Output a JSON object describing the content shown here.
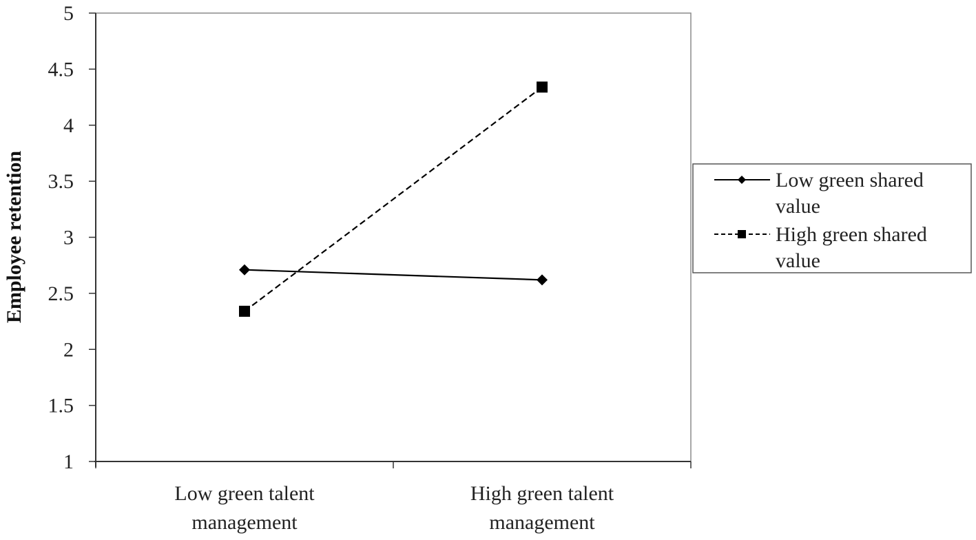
{
  "chart_data": {
    "type": "line",
    "title": "",
    "xlabel": "",
    "ylabel": "Employee retention",
    "ylim": [
      1,
      5
    ],
    "yticks": [
      1,
      1.5,
      2,
      2.5,
      3,
      3.5,
      4,
      4.5,
      5
    ],
    "ytick_labels": [
      "1",
      "1.5",
      "2",
      "2.5",
      "3",
      "3.5",
      "4",
      "4.5",
      "5"
    ],
    "categories": [
      [
        "Low green talent",
        "management"
      ],
      [
        "High green talent",
        "management"
      ]
    ],
    "grid": false,
    "legend_position": "right",
    "series": [
      {
        "name": "Low green shared value",
        "name_lines": [
          "Low green shared",
          "value"
        ],
        "values": [
          2.71,
          2.62
        ],
        "line_style": "solid",
        "marker": "diamond",
        "color": "#000000"
      },
      {
        "name": "High green shared value",
        "name_lines": [
          "High green shared",
          "value"
        ],
        "values": [
          2.34,
          4.34
        ],
        "line_style": "dashed",
        "marker": "square",
        "color": "#000000"
      }
    ]
  }
}
